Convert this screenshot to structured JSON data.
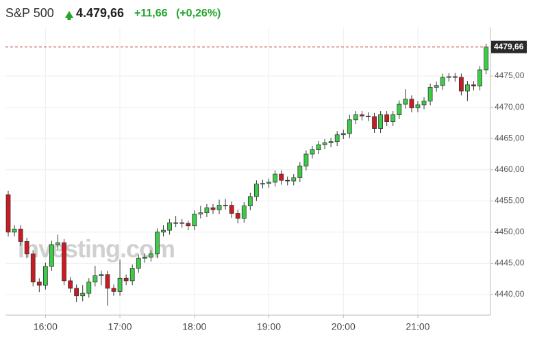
{
  "chart_data": {
    "type": "candlestick",
    "title": "S&P 500",
    "price": "4.479,66",
    "change": "+11,66",
    "change_pct": "(+0,26%)",
    "watermark": "Investing.com",
    "up_color": "#3dcc48",
    "down_color": "#cc1a22",
    "categories": [
      null,
      null,
      null,
      null,
      null,
      null,
      "16:00",
      null,
      null,
      null,
      null,
      null,
      null,
      null,
      null,
      null,
      null,
      null,
      "17:00",
      null,
      null,
      null,
      null,
      null,
      null,
      null,
      null,
      null,
      null,
      null,
      "18:00",
      null,
      null,
      null,
      null,
      null,
      null,
      null,
      null,
      null,
      null,
      null,
      "19:00",
      null,
      null,
      null,
      null,
      null,
      null,
      null,
      null,
      null,
      null,
      null,
      "20:00",
      null,
      null,
      null,
      null,
      null,
      null,
      null,
      null,
      null,
      null,
      null,
      "21:00",
      null,
      null,
      null,
      null,
      null,
      null,
      null,
      null,
      null,
      null,
      null
    ],
    "open": [
      4456,
      4450,
      4450.5,
      4448.5,
      4446.5,
      4442,
      4441.5,
      4444.5,
      4448,
      4448.3,
      4442.2,
      4441,
      4439.8,
      4440.2,
      4442,
      4443,
      4443.2,
      4441,
      4440.5,
      4442.6,
      4442.2,
      4444.2,
      4445.8,
      4446,
      4446.5,
      4450,
      4450.3,
      4451.5,
      4451.5,
      4451.4,
      4451,
      4452.9,
      4453.1,
      4453.9,
      4453.6,
      4454.3,
      4454.3,
      4453,
      4452.2,
      4454.2,
      4455.7,
      4457.7,
      4457.8,
      4458,
      4459.3,
      4458.3,
      4458.2,
      4458.7,
      4460.6,
      4462.5,
      4463.2,
      4464,
      4464.3,
      4464.5,
      4465.6,
      4465.8,
      4468,
      4468.8,
      4468.6,
      4468.5,
      4466.6,
      4468.8,
      4467.7,
      4468.8,
      4470.5,
      4471.3,
      4469.9,
      4470.4,
      4471,
      4473.2,
      4473.5,
      4474.8,
      4474.9,
      4474.8,
      4472.6,
      4473.6,
      4473.4,
      4476
    ],
    "high": [
      4456.6,
      4451.1,
      4451.1,
      4449.1,
      4447.1,
      4442.6,
      4445.1,
      4448.6,
      4449.6,
      4448.9,
      4442.8,
      4441.6,
      4441.5,
      4442.6,
      4444.6,
      4443.8,
      4443.8,
      4441.6,
      4445.6,
      4443.2,
      4444.8,
      4446.4,
      4446.6,
      4447.1,
      4450.6,
      4451.1,
      4452.1,
      4452.6,
      4452.1,
      4451.8,
      4453.5,
      4454.2,
      4454.5,
      4454.5,
      4455.2,
      4455.3,
      4454.9,
      4453.6,
      4454.8,
      4456.3,
      4458.3,
      4458.4,
      4458.6,
      4459.9,
      4459.9,
      4458.9,
      4459.3,
      4461.2,
      4463.1,
      4463.8,
      4464.6,
      4464.9,
      4465.1,
      4466.2,
      4466.4,
      4468.8,
      4469.4,
      4469.4,
      4469.2,
      4469.1,
      4469.4,
      4469.4,
      4469.4,
      4471.1,
      4472.9,
      4471.9,
      4471,
      4471.6,
      4473.8,
      4474.1,
      4475.4,
      4475.5,
      4475.5,
      4475.4,
      4474.2,
      4474.2,
      4476.6,
      4480.2
    ],
    "low": [
      4449.3,
      4449.3,
      4447.8,
      4445.8,
      4441.3,
      4440.4,
      4440.8,
      4443.8,
      4447.3,
      4441.5,
      4440.3,
      4438.8,
      4438.9,
      4439.5,
      4441.3,
      4441.5,
      4438.2,
      4439.8,
      4439.8,
      4441.5,
      4441.5,
      4443.5,
      4445.1,
      4445.3,
      4445.8,
      4449.3,
      4449.6,
      4450.8,
      4450.7,
      4450.3,
      4450.3,
      4452.2,
      4452.4,
      4452.9,
      4452.9,
      4453.6,
      4452.3,
      4451.4,
      4451.5,
      4453.5,
      4455,
      4457,
      4457.1,
      4457.3,
      4457.6,
      4457.5,
      4457.5,
      4458,
      4459.9,
      4461.8,
      4462.5,
      4463.3,
      4463.6,
      4463.8,
      4464.9,
      4465.1,
      4467.3,
      4467.9,
      4467.8,
      4465.9,
      4465.9,
      4467,
      4467,
      4468.1,
      4469.8,
      4469.2,
      4469.2,
      4469.7,
      4470.3,
      4472.5,
      4472.8,
      4474.1,
      4474.1,
      4471.9,
      4471,
      4472.7,
      4472.7,
      4475.3
    ],
    "close": [
      4450,
      4450.5,
      4448.5,
      4446.5,
      4442,
      4441.5,
      4444.5,
      4448,
      4448.3,
      4442.2,
      4441,
      4439.8,
      4440.2,
      4442,
      4443,
      4443.2,
      4441,
      4440.5,
      4442.6,
      4442.2,
      4444.2,
      4445.8,
      4446,
      4446.5,
      4450,
      4450.3,
      4451.5,
      4451.5,
      4451.4,
      4451,
      4452.9,
      4453.1,
      4453.9,
      4453.6,
      4454.3,
      4454.3,
      4453,
      4452.2,
      4454.2,
      4455.7,
      4457.7,
      4457.8,
      4458,
      4459.3,
      4458.3,
      4458.2,
      4458.7,
      4460.6,
      4462.5,
      4463.2,
      4464,
      4464.3,
      4464.5,
      4465.6,
      4465.8,
      4468,
      4468.8,
      4468.6,
      4468.5,
      4466.6,
      4468.8,
      4467.7,
      4468.8,
      4470.5,
      4471.3,
      4469.9,
      4470.4,
      4471,
      4473.2,
      4473.5,
      4474.8,
      4474.9,
      4474.8,
      4472.6,
      4473.6,
      4473.4,
      4476,
      4479.66
    ],
    "last": {
      "value": 4479.66,
      "label": "4479,66"
    },
    "ylim": [
      4436.7,
      4482.8
    ],
    "yticks": [
      {
        "value": 4440,
        "label": "4440,00"
      },
      {
        "value": 4445,
        "label": "4445,00"
      },
      {
        "value": 4450,
        "label": "4450,00"
      },
      {
        "value": 4455,
        "label": "4455,00"
      },
      {
        "value": 4460,
        "label": "4460,00"
      },
      {
        "value": 4465,
        "label": "4465,00"
      },
      {
        "value": 4470,
        "label": "4470,00"
      },
      {
        "value": 4475,
        "label": "4475,00"
      }
    ],
    "grid": true
  }
}
